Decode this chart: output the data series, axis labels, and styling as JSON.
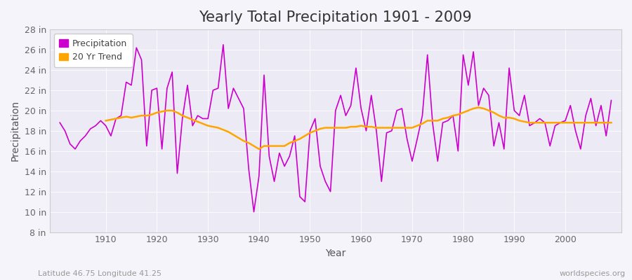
{
  "title": "Yearly Total Precipitation 1901 - 2009",
  "xlabel": "Year",
  "ylabel": "Precipitation",
  "footnote_left": "Latitude 46.75 Longitude 41.25",
  "footnote_right": "worldspecies.org",
  "line_color": "#CC00CC",
  "trend_color": "#FFA500",
  "background_color": "#F5F4FA",
  "plot_bg_color": "#ECEAF4",
  "grid_color": "#FFFFFF",
  "ylim": [
    8,
    28
  ],
  "ytick_labels": [
    "8 in",
    "10 in",
    "12 in",
    "14 in",
    "16 in",
    "18 in",
    "20 in",
    "22 in",
    "24 in",
    "26 in",
    "28 in"
  ],
  "ytick_values": [
    8,
    10,
    12,
    14,
    16,
    18,
    20,
    22,
    24,
    26,
    28
  ],
  "years": [
    1901,
    1902,
    1903,
    1904,
    1905,
    1906,
    1907,
    1908,
    1909,
    1910,
    1911,
    1912,
    1913,
    1914,
    1915,
    1916,
    1917,
    1918,
    1919,
    1920,
    1921,
    1922,
    1923,
    1924,
    1925,
    1926,
    1927,
    1928,
    1929,
    1930,
    1931,
    1932,
    1933,
    1934,
    1935,
    1936,
    1937,
    1938,
    1939,
    1940,
    1941,
    1942,
    1943,
    1944,
    1945,
    1946,
    1947,
    1948,
    1949,
    1950,
    1951,
    1952,
    1953,
    1954,
    1955,
    1956,
    1957,
    1958,
    1959,
    1960,
    1961,
    1962,
    1963,
    1964,
    1965,
    1966,
    1967,
    1968,
    1969,
    1970,
    1971,
    1972,
    1973,
    1974,
    1975,
    1976,
    1977,
    1978,
    1979,
    1980,
    1981,
    1982,
    1983,
    1984,
    1985,
    1986,
    1987,
    1988,
    1989,
    1990,
    1991,
    1992,
    1993,
    1994,
    1995,
    1996,
    1997,
    1998,
    1999,
    2000,
    2001,
    2002,
    2003,
    2004,
    2005,
    2006,
    2007,
    2008,
    2009
  ],
  "precipitation": [
    18.8,
    18.0,
    16.7,
    16.2,
    17.0,
    17.5,
    18.2,
    18.5,
    19.0,
    18.5,
    17.5,
    19.2,
    19.5,
    22.8,
    22.5,
    26.2,
    25.0,
    16.5,
    22.0,
    22.2,
    16.2,
    22.2,
    23.8,
    13.8,
    19.2,
    22.5,
    18.5,
    19.5,
    19.2,
    19.2,
    22.0,
    22.2,
    26.5,
    20.2,
    22.2,
    21.2,
    20.2,
    14.2,
    10.0,
    13.5,
    23.5,
    15.5,
    13.0,
    15.8,
    14.5,
    15.5,
    17.5,
    11.5,
    11.0,
    18.0,
    19.2,
    14.5,
    13.0,
    12.0,
    20.0,
    21.5,
    19.5,
    20.5,
    24.2,
    20.2,
    18.0,
    21.5,
    18.0,
    13.0,
    17.8,
    18.0,
    20.0,
    20.2,
    17.2,
    15.0,
    17.2,
    19.5,
    25.5,
    18.8,
    15.0,
    18.8,
    19.0,
    19.5,
    16.0,
    25.5,
    22.5,
    25.8,
    20.5,
    22.2,
    21.5,
    16.5,
    18.8,
    16.2,
    24.2,
    20.0,
    19.5,
    21.5,
    18.5,
    18.8,
    19.2,
    18.8,
    16.5,
    18.5,
    18.8,
    19.0,
    20.5,
    18.0,
    16.2,
    19.5,
    21.2,
    18.5,
    20.5,
    17.5,
    21.0
  ],
  "trend": [
    null,
    null,
    null,
    null,
    null,
    null,
    null,
    null,
    null,
    19.0,
    19.1,
    19.2,
    19.3,
    19.4,
    19.3,
    19.4,
    19.5,
    19.5,
    19.6,
    19.8,
    19.9,
    20.0,
    20.0,
    19.8,
    19.5,
    19.3,
    19.1,
    18.9,
    18.7,
    18.5,
    18.4,
    18.3,
    18.1,
    17.9,
    17.6,
    17.3,
    17.0,
    16.8,
    16.5,
    16.2,
    16.5,
    16.5,
    16.5,
    16.5,
    16.5,
    16.8,
    17.0,
    17.2,
    17.5,
    17.8,
    18.0,
    18.2,
    18.3,
    18.3,
    18.3,
    18.3,
    18.3,
    18.4,
    18.4,
    18.5,
    18.4,
    18.4,
    18.3,
    18.3,
    18.3,
    18.3,
    18.3,
    18.3,
    18.3,
    18.3,
    18.5,
    18.7,
    19.0,
    19.0,
    19.0,
    19.2,
    19.3,
    19.5,
    19.6,
    19.8,
    20.0,
    20.2,
    20.3,
    20.2,
    20.0,
    19.8,
    19.5,
    19.3,
    19.3,
    19.2,
    19.0,
    18.9,
    18.8,
    18.8,
    18.8,
    18.8,
    18.8,
    18.8,
    18.8,
    18.8,
    18.8,
    18.8,
    18.8,
    18.8,
    18.8,
    18.8,
    18.8,
    18.8,
    18.8
  ],
  "legend_labels": [
    "Precipitation",
    "20 Yr Trend"
  ],
  "xlim_left": 1901,
  "xlim_right": 2009,
  "xtick_start": 1910,
  "xtick_step": 10,
  "title_fontsize": 15,
  "axis_label_fontsize": 10,
  "tick_fontsize": 9,
  "legend_fontsize": 9,
  "footnote_fontsize": 8
}
